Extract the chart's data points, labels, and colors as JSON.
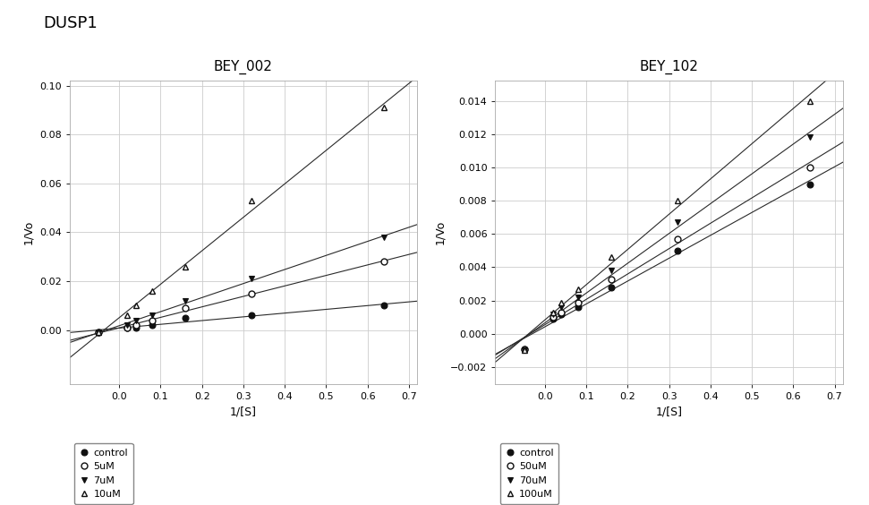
{
  "title_main": "DUSP1",
  "plot1_title": "BEY_002",
  "plot2_title": "BEY_102",
  "xlabel": "1/[S]",
  "ylabel": "1/Vo",
  "plot1": {
    "xlim": [
      -0.12,
      0.72
    ],
    "ylim": [
      -0.022,
      0.102
    ],
    "yticks": [
      0.0,
      0.02,
      0.04,
      0.06,
      0.08,
      0.1
    ],
    "xticks": [
      0.0,
      0.1,
      0.2,
      0.3,
      0.4,
      0.5,
      0.6,
      0.7
    ],
    "series": {
      "control": {
        "x": [
          -0.05,
          0.02,
          0.04,
          0.08,
          0.16,
          0.32,
          0.64
        ],
        "y": [
          -0.0008,
          0.001,
          0.001,
          0.002,
          0.005,
          0.006,
          0.01
        ],
        "marker": "o",
        "filled": true
      },
      "5uM": {
        "x": [
          -0.05,
          0.02,
          0.04,
          0.08,
          0.16,
          0.32,
          0.64
        ],
        "y": [
          -0.0008,
          0.001,
          0.002,
          0.004,
          0.009,
          0.015,
          0.028
        ],
        "marker": "o",
        "filled": false
      },
      "7uM": {
        "x": [
          -0.05,
          0.02,
          0.04,
          0.08,
          0.16,
          0.32,
          0.64
        ],
        "y": [
          -0.001,
          0.002,
          0.004,
          0.006,
          0.012,
          0.021,
          0.038
        ],
        "marker": "v",
        "filled": true
      },
      "10uM": {
        "x": [
          -0.05,
          0.02,
          0.04,
          0.08,
          0.16,
          0.32,
          0.64
        ],
        "y": [
          -0.001,
          0.006,
          0.01,
          0.016,
          0.026,
          0.053,
          0.091
        ],
        "marker": "^",
        "filled": false
      }
    },
    "legend_labels": [
      "control",
      "5uM",
      "7uM",
      "10uM"
    ]
  },
  "plot2": {
    "xlim": [
      -0.12,
      0.72
    ],
    "ylim": [
      -0.003,
      0.0152
    ],
    "yticks": [
      -0.002,
      0.0,
      0.002,
      0.004,
      0.006,
      0.008,
      0.01,
      0.012,
      0.014
    ],
    "xticks": [
      0.0,
      0.1,
      0.2,
      0.3,
      0.4,
      0.5,
      0.6,
      0.7
    ],
    "series": {
      "control": {
        "x": [
          -0.05,
          0.02,
          0.04,
          0.08,
          0.16,
          0.32,
          0.64
        ],
        "y": [
          -0.0009,
          0.0009,
          0.0012,
          0.0016,
          0.0028,
          0.005,
          0.009
        ],
        "marker": "o",
        "filled": true
      },
      "50uM": {
        "x": [
          -0.05,
          0.02,
          0.04,
          0.08,
          0.16,
          0.32,
          0.64
        ],
        "y": [
          -0.0009,
          0.001,
          0.0013,
          0.0019,
          0.0033,
          0.0057,
          0.01
        ],
        "marker": "o",
        "filled": false
      },
      "70uM": {
        "x": [
          -0.05,
          0.02,
          0.04,
          0.08,
          0.16,
          0.32,
          0.64
        ],
        "y": [
          -0.001,
          0.0012,
          0.0016,
          0.0022,
          0.0038,
          0.0067,
          0.0118
        ],
        "marker": "v",
        "filled": true
      },
      "100uM": {
        "x": [
          -0.05,
          0.02,
          0.04,
          0.08,
          0.16,
          0.32,
          0.64
        ],
        "y": [
          -0.001,
          0.0013,
          0.0019,
          0.0027,
          0.0046,
          0.008,
          0.014
        ],
        "marker": "^",
        "filled": false
      }
    },
    "legend_labels": [
      "control",
      "50uM",
      "70uM",
      "100uM"
    ]
  },
  "line_color": "#2a2a2a",
  "marker_color_filled": "#111111",
  "marker_color_open": "#111111",
  "marker_size": 5,
  "background_color": "#ffffff",
  "grid_color": "#cccccc",
  "title_fontsize": 13,
  "subtitle_fontsize": 11,
  "label_fontsize": 9,
  "tick_fontsize": 8,
  "legend_fontsize": 8
}
